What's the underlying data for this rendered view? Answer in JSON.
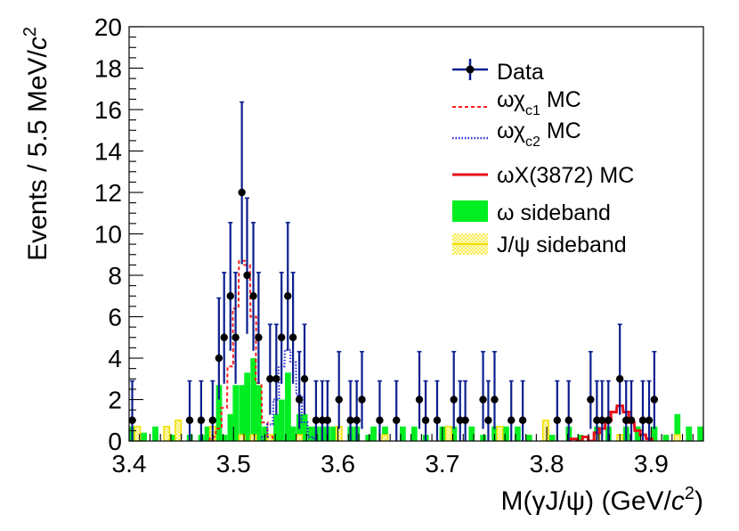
{
  "chart_data": {
    "type": "histogram",
    "title": "",
    "xlabel": "M(γJ/ψ) (GeV/c²)",
    "ylabel": "Events / 5.5 MeV/c²",
    "xlim": [
      3.4,
      3.95
    ],
    "ylim": [
      0,
      20
    ],
    "xticks": [
      "3.4",
      "3.5",
      "3.6",
      "3.7",
      "3.8",
      "3.9"
    ],
    "yticks": [
      "0",
      "2",
      "4",
      "6",
      "8",
      "10",
      "12",
      "14",
      "16",
      "18",
      "20"
    ],
    "bin_width": 0.0055,
    "legend": {
      "placement": "top-right",
      "entries": [
        "Data",
        "ωχc1 MC",
        "ωχc2 MC",
        "ωX(3872) MC",
        "ω sideband",
        "J/ψ sideband"
      ]
    },
    "series": [
      {
        "name": "Data",
        "kind": "points-with-errors",
        "color": "#0b1f8f",
        "points": [
          {
            "x": 3.403,
            "y": 1
          },
          {
            "x": 3.458,
            "y": 1
          },
          {
            "x": 3.469,
            "y": 1
          },
          {
            "x": 3.48,
            "y": 1
          },
          {
            "x": 3.486,
            "y": 4
          },
          {
            "x": 3.491,
            "y": 5
          },
          {
            "x": 3.497,
            "y": 7
          },
          {
            "x": 3.502,
            "y": 5
          },
          {
            "x": 3.508,
            "y": 12
          },
          {
            "x": 3.513,
            "y": 8
          },
          {
            "x": 3.519,
            "y": 7
          },
          {
            "x": 3.524,
            "y": 5
          },
          {
            "x": 3.535,
            "y": 3
          },
          {
            "x": 3.541,
            "y": 3
          },
          {
            "x": 3.546,
            "y": 5
          },
          {
            "x": 3.552,
            "y": 7
          },
          {
            "x": 3.557,
            "y": 5
          },
          {
            "x": 3.563,
            "y": 2
          },
          {
            "x": 3.568,
            "y": 3
          },
          {
            "x": 3.579,
            "y": 1
          },
          {
            "x": 3.585,
            "y": 1
          },
          {
            "x": 3.59,
            "y": 1
          },
          {
            "x": 3.601,
            "y": 2
          },
          {
            "x": 3.612,
            "y": 1
          },
          {
            "x": 3.618,
            "y": 1
          },
          {
            "x": 3.623,
            "y": 2
          },
          {
            "x": 3.64,
            "y": 1
          },
          {
            "x": 3.656,
            "y": 1
          },
          {
            "x": 3.678,
            "y": 2
          },
          {
            "x": 3.684,
            "y": 1
          },
          {
            "x": 3.695,
            "y": 1
          },
          {
            "x": 3.711,
            "y": 2
          },
          {
            "x": 3.717,
            "y": 1
          },
          {
            "x": 3.722,
            "y": 1
          },
          {
            "x": 3.739,
            "y": 2
          },
          {
            "x": 3.744,
            "y": 1
          },
          {
            "x": 3.75,
            "y": 2
          },
          {
            "x": 3.766,
            "y": 1
          },
          {
            "x": 3.777,
            "y": 1
          },
          {
            "x": 3.81,
            "y": 1
          },
          {
            "x": 3.821,
            "y": 1
          },
          {
            "x": 3.842,
            "y": 2
          },
          {
            "x": 3.848,
            "y": 1
          },
          {
            "x": 3.853,
            "y": 1
          },
          {
            "x": 3.859,
            "y": 1
          },
          {
            "x": 3.87,
            "y": 3
          },
          {
            "x": 3.876,
            "y": 1
          },
          {
            "x": 3.881,
            "y": 1
          },
          {
            "x": 3.892,
            "y": 1
          },
          {
            "x": 3.898,
            "y": 1
          },
          {
            "x": 3.903,
            "y": 2
          }
        ]
      },
      {
        "name": "ωχc1 MC",
        "kind": "dashed-step",
        "color": "#ff1f1f",
        "bins": [
          {
            "x": 3.48,
            "y": 0.2
          },
          {
            "x": 3.486,
            "y": 0.6
          },
          {
            "x": 3.491,
            "y": 1.6
          },
          {
            "x": 3.497,
            "y": 3.6
          },
          {
            "x": 3.502,
            "y": 6.4
          },
          {
            "x": 3.508,
            "y": 8.7
          },
          {
            "x": 3.513,
            "y": 8.5
          },
          {
            "x": 3.519,
            "y": 6.0
          },
          {
            "x": 3.524,
            "y": 2.8
          },
          {
            "x": 3.53,
            "y": 0.9
          },
          {
            "x": 3.535,
            "y": 0.2
          }
        ]
      },
      {
        "name": "ωχc2 MC",
        "kind": "dotted-step",
        "color": "#2a2ad8",
        "bins": [
          {
            "x": 3.53,
            "y": 0.2
          },
          {
            "x": 3.535,
            "y": 0.8
          },
          {
            "x": 3.541,
            "y": 2.0
          },
          {
            "x": 3.546,
            "y": 3.6
          },
          {
            "x": 3.552,
            "y": 4.4
          },
          {
            "x": 3.557,
            "y": 3.8
          },
          {
            "x": 3.563,
            "y": 2.2
          },
          {
            "x": 3.568,
            "y": 0.9
          },
          {
            "x": 3.574,
            "y": 0.2
          }
        ]
      },
      {
        "name": "ωX(3872) MC",
        "kind": "solid-step",
        "color": "#e8101a",
        "bins": [
          {
            "x": 3.826,
            "y": 0.1
          },
          {
            "x": 3.837,
            "y": 0.2
          },
          {
            "x": 3.848,
            "y": 0.4
          },
          {
            "x": 3.853,
            "y": 0.6
          },
          {
            "x": 3.859,
            "y": 1.0
          },
          {
            "x": 3.864,
            "y": 1.4
          },
          {
            "x": 3.87,
            "y": 1.7
          },
          {
            "x": 3.876,
            "y": 1.4
          },
          {
            "x": 3.881,
            "y": 0.9
          },
          {
            "x": 3.887,
            "y": 0.5
          },
          {
            "x": 3.892,
            "y": 0.3
          },
          {
            "x": 3.898,
            "y": 0.1
          }
        ]
      },
      {
        "name": "ω sideband",
        "kind": "filled-bins",
        "color": "#00ee22",
        "bins": [
          {
            "x": 3.403,
            "y": 0.7
          },
          {
            "x": 3.414,
            "y": 0.4
          },
          {
            "x": 3.425,
            "y": 0.7
          },
          {
            "x": 3.441,
            "y": 0.3
          },
          {
            "x": 3.458,
            "y": 0.3
          },
          {
            "x": 3.469,
            "y": 0.3
          },
          {
            "x": 3.475,
            "y": 0.7
          },
          {
            "x": 3.48,
            "y": 0.7
          },
          {
            "x": 3.486,
            "y": 2.7
          },
          {
            "x": 3.491,
            "y": 0.3
          },
          {
            "x": 3.497,
            "y": 1.3
          },
          {
            "x": 3.502,
            "y": 2.7
          },
          {
            "x": 3.508,
            "y": 2.7
          },
          {
            "x": 3.513,
            "y": 3.3
          },
          {
            "x": 3.519,
            "y": 4.0
          },
          {
            "x": 3.524,
            "y": 2.7
          },
          {
            "x": 3.53,
            "y": 0.7
          },
          {
            "x": 3.541,
            "y": 1.3
          },
          {
            "x": 3.546,
            "y": 2.0
          },
          {
            "x": 3.552,
            "y": 3.3
          },
          {
            "x": 3.557,
            "y": 0.7
          },
          {
            "x": 3.563,
            "y": 1.3
          },
          {
            "x": 3.568,
            "y": 1.3
          },
          {
            "x": 3.574,
            "y": 0.7
          },
          {
            "x": 3.579,
            "y": 0.7
          },
          {
            "x": 3.585,
            "y": 0.7
          },
          {
            "x": 3.59,
            "y": 0.7
          },
          {
            "x": 3.596,
            "y": 0.7
          },
          {
            "x": 3.612,
            "y": 0.7
          },
          {
            "x": 3.618,
            "y": 0.7
          },
          {
            "x": 3.629,
            "y": 0.3
          },
          {
            "x": 3.634,
            "y": 0.7
          },
          {
            "x": 3.645,
            "y": 0.7
          },
          {
            "x": 3.662,
            "y": 0.7
          },
          {
            "x": 3.673,
            "y": 0.7
          },
          {
            "x": 3.684,
            "y": 0.3
          },
          {
            "x": 3.7,
            "y": 0.7
          },
          {
            "x": 3.711,
            "y": 0.7
          },
          {
            "x": 3.728,
            "y": 0.7
          },
          {
            "x": 3.739,
            "y": 0.3
          },
          {
            "x": 3.75,
            "y": 0.7
          },
          {
            "x": 3.761,
            "y": 0.7
          },
          {
            "x": 3.772,
            "y": 0.7
          },
          {
            "x": 3.783,
            "y": 0.3
          },
          {
            "x": 3.805,
            "y": 0.3
          },
          {
            "x": 3.821,
            "y": 0.7
          },
          {
            "x": 3.832,
            "y": 0.3
          },
          {
            "x": 3.848,
            "y": 0.7
          },
          {
            "x": 3.859,
            "y": 0.7
          },
          {
            "x": 3.876,
            "y": 0.7
          },
          {
            "x": 3.887,
            "y": 0.7
          },
          {
            "x": 3.903,
            "y": 0.7
          },
          {
            "x": 3.914,
            "y": 0.3
          },
          {
            "x": 3.925,
            "y": 1.3
          },
          {
            "x": 3.936,
            "y": 0.7
          },
          {
            "x": 3.947,
            "y": 0.7
          }
        ]
      },
      {
        "name": "J/ψ sideband",
        "kind": "hatched-bins",
        "color": "#f0e000",
        "bins": [
          {
            "x": 3.408,
            "y": 0.7
          },
          {
            "x": 3.436,
            "y": 0.7
          },
          {
            "x": 3.447,
            "y": 1.0
          },
          {
            "x": 3.48,
            "y": 0.7
          },
          {
            "x": 3.508,
            "y": 0.3
          },
          {
            "x": 3.519,
            "y": 0.3
          },
          {
            "x": 3.535,
            "y": 0.3
          },
          {
            "x": 3.563,
            "y": 0.3
          },
          {
            "x": 3.601,
            "y": 0.7
          },
          {
            "x": 3.645,
            "y": 0.3
          },
          {
            "x": 3.706,
            "y": 0.7
          },
          {
            "x": 3.755,
            "y": 0.7
          },
          {
            "x": 3.799,
            "y": 1.0
          },
          {
            "x": 3.848,
            "y": 0.3
          },
          {
            "x": 3.87,
            "y": 0.3
          },
          {
            "x": 3.925,
            "y": 0.3
          }
        ]
      }
    ]
  }
}
